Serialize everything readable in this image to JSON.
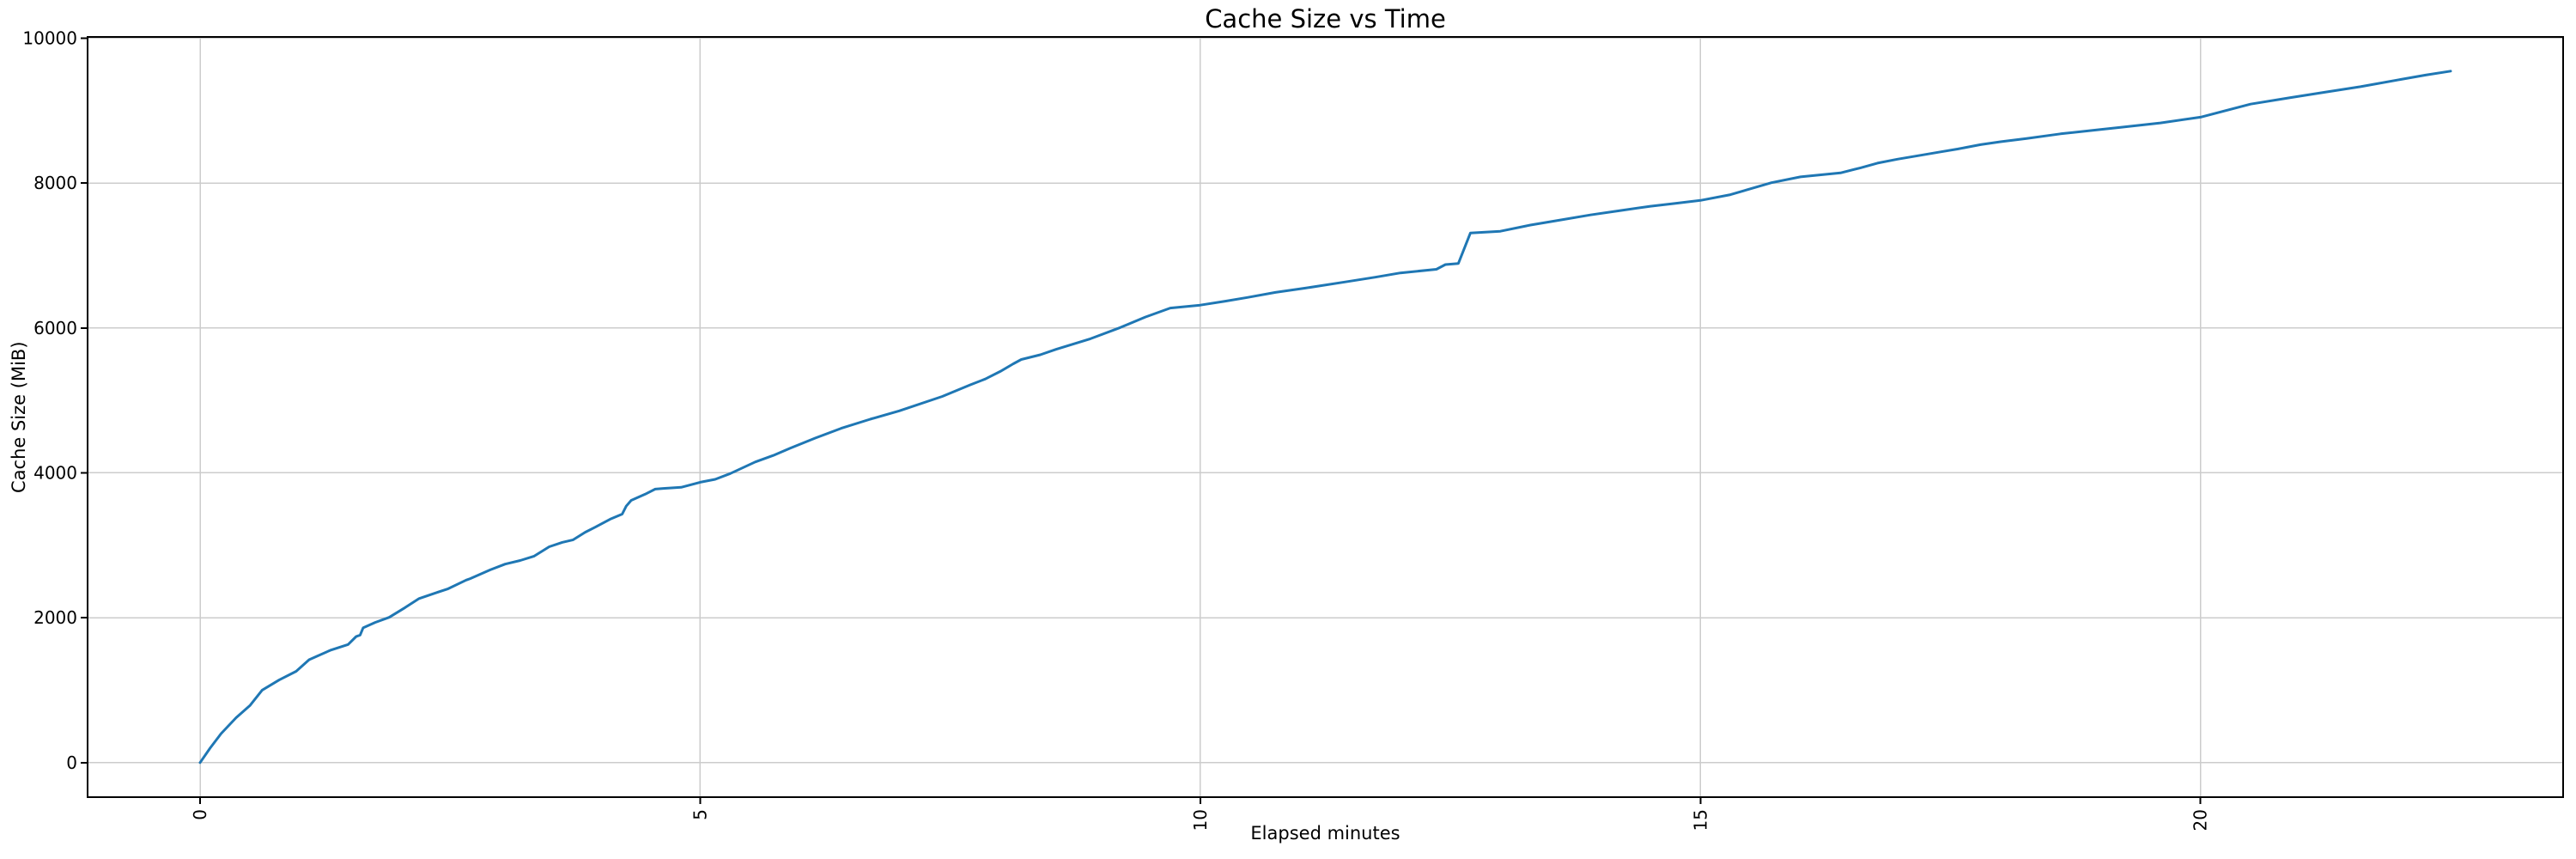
{
  "figure": {
    "title": "Cache Size vs Time",
    "xlabel": "Elapsed minutes",
    "ylabel": "Cache Size (MiB)"
  },
  "chart_data": {
    "type": "line",
    "title": "Cache Size vs Time",
    "xlabel": "Elapsed minutes",
    "ylabel": "Cache Size (MiB)",
    "series_name": "cache-size",
    "line_color": "#1f77b4",
    "grid": true,
    "grid_color": "#cccccc",
    "legend_position": "none",
    "xlim": [
      -1.125,
      23.625
    ],
    "ylim": [
      -477,
      10017
    ],
    "x_ticks": [
      0,
      5,
      10,
      15,
      20
    ],
    "y_ticks": [
      0,
      2000,
      4000,
      6000,
      8000,
      10000
    ],
    "x_tick_label_rotation": 90,
    "x": [
      0,
      0.1,
      0.21,
      0.36,
      0.5,
      0.62,
      0.79,
      0.96,
      1.09,
      1.3,
      1.48,
      1.56,
      1.6,
      1.63,
      1.75,
      1.89,
      2.05,
      2.19,
      2.35,
      2.48,
      2.66,
      2.7,
      2.9,
      3.05,
      3.2,
      3.34,
      3.49,
      3.62,
      3.73,
      3.85,
      3.95,
      4.1,
      4.22,
      4.26,
      4.31,
      4.45,
      4.55,
      4.63,
      4.81,
      5.0,
      5.15,
      5.3,
      5.55,
      5.73,
      5.9,
      6.15,
      6.41,
      6.7,
      6.99,
      7.42,
      7.7,
      7.85,
      8.0,
      8.13,
      8.21,
      8.4,
      8.56,
      8.9,
      9.2,
      9.45,
      9.7,
      10.0,
      10.25,
      10.47,
      10.75,
      11.05,
      11.45,
      11.75,
      12.0,
      12.36,
      12.45,
      12.58,
      12.7,
      13.0,
      13.3,
      13.6,
      13.9,
      14.2,
      14.5,
      14.75,
      15.0,
      15.3,
      15.71,
      16.0,
      16.4,
      16.6,
      16.77,
      16.97,
      17.23,
      17.4,
      17.57,
      17.8,
      18.0,
      18.26,
      18.6,
      19.0,
      19.2,
      19.6,
      20.0,
      20.5,
      20.9,
      21.2,
      21.6,
      22.0,
      22.25,
      22.5
    ],
    "y": [
      0,
      200,
      400,
      620,
      790,
      1000,
      1140,
      1260,
      1420,
      1550,
      1630,
      1740,
      1760,
      1860,
      1935,
      2005,
      2140,
      2265,
      2340,
      2400,
      2520,
      2540,
      2660,
      2740,
      2790,
      2850,
      2980,
      3040,
      3075,
      3180,
      3250,
      3360,
      3430,
      3540,
      3620,
      3705,
      3775,
      3785,
      3800,
      3870,
      3910,
      3990,
      4150,
      4240,
      4340,
      4480,
      4615,
      4740,
      4855,
      5055,
      5215,
      5295,
      5400,
      5505,
      5565,
      5630,
      5705,
      5850,
      6005,
      6150,
      6275,
      6315,
      6370,
      6420,
      6490,
      6550,
      6635,
      6700,
      6760,
      6810,
      6875,
      6890,
      7310,
      7335,
      7420,
      7490,
      7560,
      7620,
      7680,
      7720,
      7760,
      7840,
      8005,
      8085,
      8140,
      8210,
      8275,
      8330,
      8390,
      8430,
      8470,
      8530,
      8570,
      8615,
      8680,
      8740,
      8770,
      8830,
      8910,
      9090,
      9180,
      9245,
      9330,
      9430,
      9490,
      9545
    ]
  }
}
